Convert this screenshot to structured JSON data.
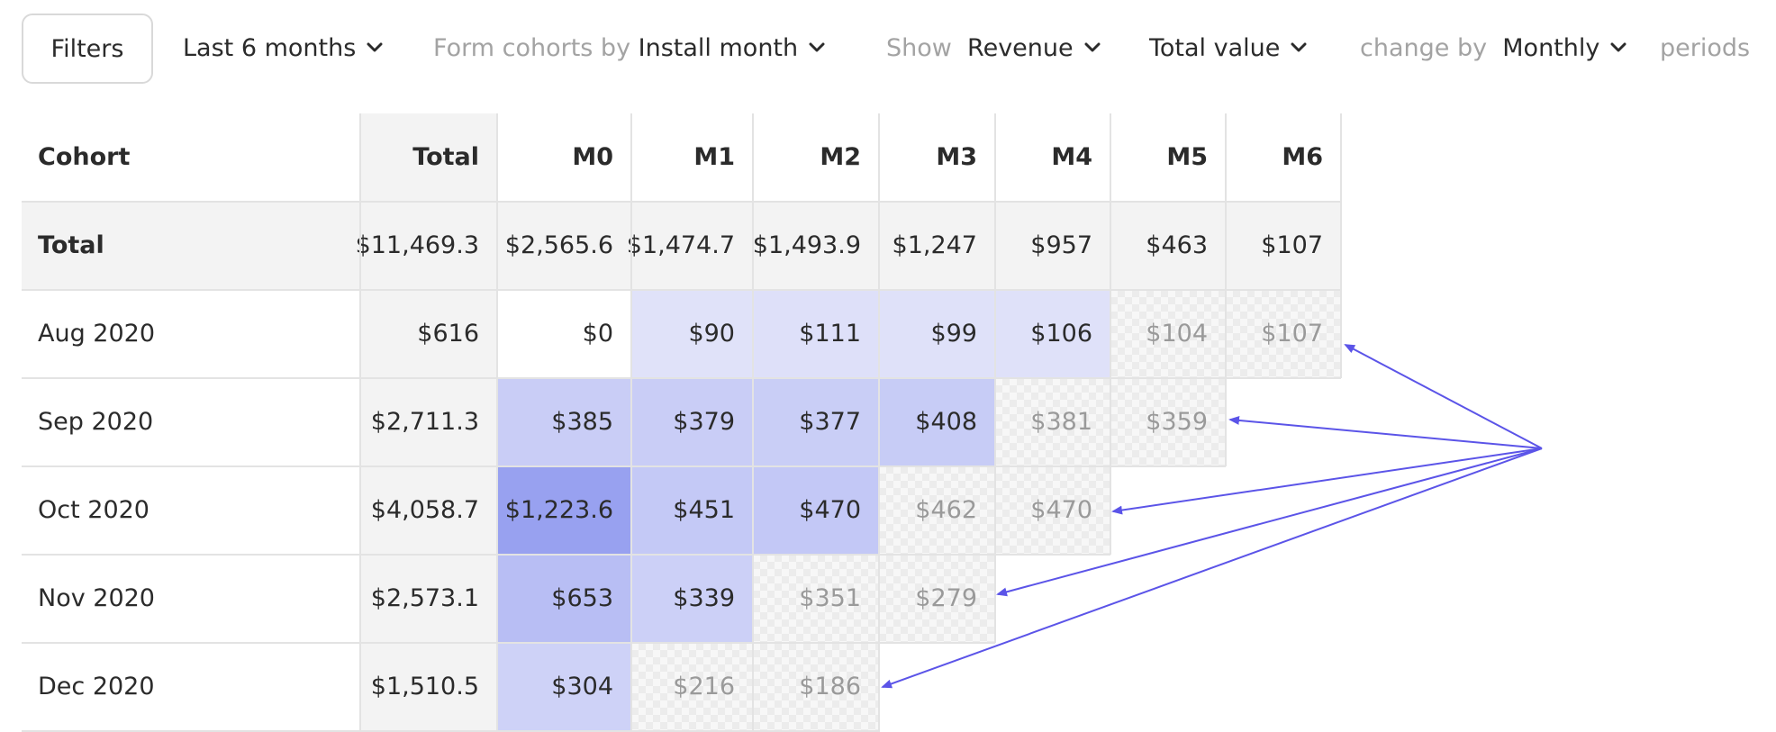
{
  "toolbar": {
    "filters_label": "Filters",
    "range_label": "Last 6 months",
    "cohort_prefix": "Form cohorts by",
    "cohort_value": "Install month",
    "show_prefix": "Show",
    "metric_value": "Revenue",
    "agg_value": "Total value",
    "change_prefix": "change by",
    "period_value": "Monthly",
    "period_suffix": "periods"
  },
  "table": {
    "headers": [
      "Cohort",
      "Total",
      "M0",
      "M1",
      "M2",
      "M3",
      "M4",
      "M5",
      "M6"
    ],
    "total_row": {
      "label": "Total",
      "total": "$11,469.3",
      "values": [
        "$2,565.6",
        "$1,474.7",
        "$1,493.9",
        "$1,247",
        "$957",
        "$463",
        "$107"
      ]
    },
    "rows": [
      {
        "cohort": "Aug 2020",
        "total": "$616",
        "values": [
          "$0",
          "$90",
          "$111",
          "$99",
          "$106",
          "$104",
          "$107"
        ],
        "actual_count": 5
      },
      {
        "cohort": "Sep 2020",
        "total": "$2,711.3",
        "values": [
          "$385",
          "$379",
          "$377",
          "$408",
          "$381",
          "$359"
        ],
        "actual_count": 4
      },
      {
        "cohort": "Oct 2020",
        "total": "$4,058.7",
        "values": [
          "$1,223.6",
          "$451",
          "$470",
          "$462",
          "$470"
        ],
        "actual_count": 3
      },
      {
        "cohort": "Nov 2020",
        "total": "$2,573.1",
        "values": [
          "$653",
          "$339",
          "$351",
          "$279"
        ],
        "actual_count": 2
      },
      {
        "cohort": "Dec 2020",
        "total": "$1,510.5",
        "values": [
          "$304",
          "$216",
          "$186"
        ],
        "actual_count": 1
      }
    ]
  },
  "colors": {
    "text": "#2b2b2b",
    "muted": "#a3a3a3",
    "projected_text": "#9a9a9a",
    "heat_base": [
      236,
      237,
      251
    ],
    "heat_max": [
      152,
      161,
      240
    ],
    "arrow": "#5b54e8",
    "header_bg": "#f3f3f3"
  }
}
